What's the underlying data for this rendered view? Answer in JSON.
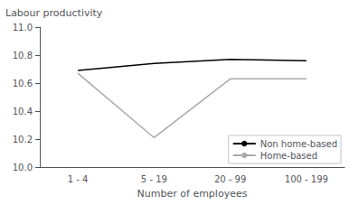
{
  "chart_data": {
    "type": "line",
    "categories": [
      "1 - 4",
      "5 - 19",
      "20 - 99",
      "100 - 199"
    ],
    "series": [
      {
        "name": "Non home-based",
        "color": "#000000",
        "values": [
          10.69,
          10.74,
          10.77,
          10.76
        ]
      },
      {
        "name": "Home-based",
        "color": "#aaaaaa",
        "values": [
          10.67,
          10.21,
          10.63,
          10.63
        ]
      }
    ],
    "x_label": "Number of employees",
    "y_label": "Labour productivity",
    "ylim": [
      10.0,
      11.0
    ],
    "yticks": [
      {
        "value": 10.0,
        "label": "10.0"
      },
      10.2,
      10.4,
      10.6,
      10.8,
      {
        "value": 11.0,
        "label": "11.0"
      }
    ],
    "grid": false,
    "legend": "lower right"
  }
}
